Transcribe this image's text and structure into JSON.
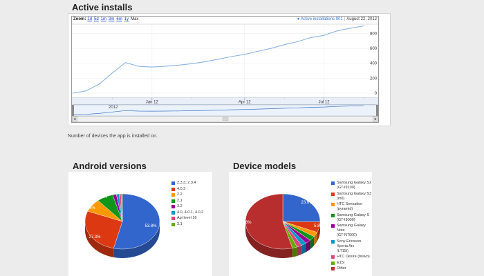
{
  "installs": {
    "title": "Active installs",
    "zoom": {
      "label": "Zoom:",
      "options": [
        "1d",
        "5d",
        "1m",
        "3m",
        "6m",
        "1y",
        "Max"
      ]
    },
    "legend": {
      "series": "Active installations 901",
      "date": "August 22, 2012"
    },
    "nav_year": "2012",
    "note": "Number of devices the app is installed on."
  },
  "versions": {
    "title": "Android versions"
  },
  "devices": {
    "title": "Device models"
  },
  "colors": {
    "line": "#8ab4e0",
    "accent": "#3a74c8",
    "nav_fill": "#d8e6f6"
  },
  "chart_data": [
    {
      "type": "line",
      "title": "Active installs",
      "x": [
        "Dec 6",
        "Dec 9",
        "Dec 12",
        "Dec 18",
        "Dec 26",
        "Jan 2",
        "Jan 12",
        "Jan 20",
        "Feb 1",
        "Feb 15",
        "Mar 1",
        "Mar 15",
        "Apr 1",
        "Apr 12",
        "May 1",
        "May 15",
        "Jun 1",
        "Jun 15",
        "Jul 1",
        "Jul 12",
        "Aug 1",
        "Aug 10",
        "Aug 22"
      ],
      "series": [
        {
          "name": "Active installations",
          "values": [
            0,
            30,
            120,
            270,
            410,
            360,
            350,
            362,
            375,
            395,
            420,
            455,
            490,
            520,
            560,
            600,
            650,
            690,
            745,
            775,
            835,
            870,
            901
          ]
        }
      ],
      "x_ticks": [
        "Jan 12",
        "Apr 12",
        "Jul 12"
      ],
      "y_ticks": [
        0,
        200,
        400,
        600,
        800
      ],
      "ylim": [
        -60,
        920
      ]
    },
    {
      "type": "pie",
      "title": "Android versions",
      "series": [
        {
          "name": "2.3.3, 2.3.4",
          "value": 53.8,
          "color": "#3366cc"
        },
        {
          "name": "4.0.3",
          "value": 27.3,
          "color": "#dc3912"
        },
        {
          "name": "2.2",
          "value": 7.6,
          "color": "#ff9900"
        },
        {
          "name": "2.1",
          "value": 7.1,
          "color": "#109618"
        },
        {
          "name": "3.2",
          "value": 1.6,
          "color": "#990099"
        },
        {
          "name": "4.0, 4.0.1, 4.0.2",
          "value": 1.2,
          "color": "#0099c6"
        },
        {
          "name": "Api level 16",
          "value": 0.8,
          "color": "#dd4477"
        },
        {
          "name": "3.1",
          "value": 0.6,
          "color": "#66aa00"
        }
      ],
      "labels": [
        "53.8%",
        "27.3%",
        "7.6%",
        "7.1%"
      ]
    },
    {
      "type": "pie",
      "title": "Device models",
      "series": [
        {
          "name": "Samsung Galaxy S2\n(GT-I9100)",
          "value": 23.6,
          "color": "#3366cc"
        },
        {
          "name": "Samsung Galaxy S3 (m0)",
          "value": 5.8,
          "color": "#dc3912"
        },
        {
          "name": "HTC Sensation (pyramid)",
          "value": 2.6,
          "color": "#ff9900"
        },
        {
          "name": "Samsung Galaxy S\n(GT-I9000)",
          "value": 2.5,
          "color": "#109618"
        },
        {
          "name": "Samsung Galaxy Note\n(GT-N7000)",
          "value": 2.3,
          "color": "#990099"
        },
        {
          "name": "Sony Ericsson Xperia Arc\n(LT15i)",
          "value": 2.1,
          "color": "#0099c6"
        },
        {
          "name": "HTC Desire (bravo)",
          "value": 2.0,
          "color": "#dd4477"
        },
        {
          "name": "E15i",
          "value": 2.0,
          "color": "#66aa00"
        },
        {
          "name": "Other",
          "value": 50.6,
          "color": "#b82e2e"
        }
      ],
      "labels": [
        "23.6%",
        "5.8%",
        "50.6%"
      ]
    }
  ]
}
